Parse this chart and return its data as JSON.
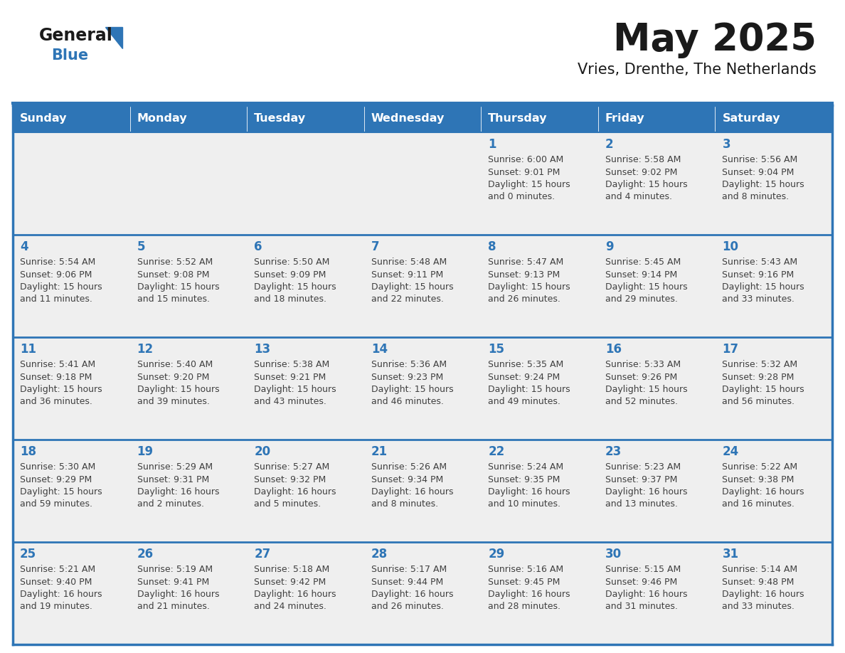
{
  "title": "May 2025",
  "subtitle": "Vries, Drenthe, The Netherlands",
  "days_of_week": [
    "Sunday",
    "Monday",
    "Tuesday",
    "Wednesday",
    "Thursday",
    "Friday",
    "Saturday"
  ],
  "header_bg": "#2E75B6",
  "header_text": "#FFFFFF",
  "cell_bg_normal": "#EFEFEF",
  "cell_bg_white": "#FFFFFF",
  "border_color": "#2E75B6",
  "day_num_color": "#2E75B6",
  "text_color": "#404040",
  "title_color": "#1a1a1a",
  "logo_text_color": "#1a1a1a",
  "logo_blue_color": "#2E75B6",
  "separator_color": "#2E75B6",
  "calendar": [
    [
      {
        "day": null,
        "sunrise": null,
        "sunset": null,
        "daylight": null
      },
      {
        "day": null,
        "sunrise": null,
        "sunset": null,
        "daylight": null
      },
      {
        "day": null,
        "sunrise": null,
        "sunset": null,
        "daylight": null
      },
      {
        "day": null,
        "sunrise": null,
        "sunset": null,
        "daylight": null
      },
      {
        "day": 1,
        "sunrise": "6:00 AM",
        "sunset": "9:01 PM",
        "daylight": "15 hours and 0 minutes."
      },
      {
        "day": 2,
        "sunrise": "5:58 AM",
        "sunset": "9:02 PM",
        "daylight": "15 hours and 4 minutes."
      },
      {
        "day": 3,
        "sunrise": "5:56 AM",
        "sunset": "9:04 PM",
        "daylight": "15 hours and 8 minutes."
      }
    ],
    [
      {
        "day": 4,
        "sunrise": "5:54 AM",
        "sunset": "9:06 PM",
        "daylight": "15 hours and 11 minutes."
      },
      {
        "day": 5,
        "sunrise": "5:52 AM",
        "sunset": "9:08 PM",
        "daylight": "15 hours and 15 minutes."
      },
      {
        "day": 6,
        "sunrise": "5:50 AM",
        "sunset": "9:09 PM",
        "daylight": "15 hours and 18 minutes."
      },
      {
        "day": 7,
        "sunrise": "5:48 AM",
        "sunset": "9:11 PM",
        "daylight": "15 hours and 22 minutes."
      },
      {
        "day": 8,
        "sunrise": "5:47 AM",
        "sunset": "9:13 PM",
        "daylight": "15 hours and 26 minutes."
      },
      {
        "day": 9,
        "sunrise": "5:45 AM",
        "sunset": "9:14 PM",
        "daylight": "15 hours and 29 minutes."
      },
      {
        "day": 10,
        "sunrise": "5:43 AM",
        "sunset": "9:16 PM",
        "daylight": "15 hours and 33 minutes."
      }
    ],
    [
      {
        "day": 11,
        "sunrise": "5:41 AM",
        "sunset": "9:18 PM",
        "daylight": "15 hours and 36 minutes."
      },
      {
        "day": 12,
        "sunrise": "5:40 AM",
        "sunset": "9:20 PM",
        "daylight": "15 hours and 39 minutes."
      },
      {
        "day": 13,
        "sunrise": "5:38 AM",
        "sunset": "9:21 PM",
        "daylight": "15 hours and 43 minutes."
      },
      {
        "day": 14,
        "sunrise": "5:36 AM",
        "sunset": "9:23 PM",
        "daylight": "15 hours and 46 minutes."
      },
      {
        "day": 15,
        "sunrise": "5:35 AM",
        "sunset": "9:24 PM",
        "daylight": "15 hours and 49 minutes."
      },
      {
        "day": 16,
        "sunrise": "5:33 AM",
        "sunset": "9:26 PM",
        "daylight": "15 hours and 52 minutes."
      },
      {
        "day": 17,
        "sunrise": "5:32 AM",
        "sunset": "9:28 PM",
        "daylight": "15 hours and 56 minutes."
      }
    ],
    [
      {
        "day": 18,
        "sunrise": "5:30 AM",
        "sunset": "9:29 PM",
        "daylight": "15 hours and 59 minutes."
      },
      {
        "day": 19,
        "sunrise": "5:29 AM",
        "sunset": "9:31 PM",
        "daylight": "16 hours and 2 minutes."
      },
      {
        "day": 20,
        "sunrise": "5:27 AM",
        "sunset": "9:32 PM",
        "daylight": "16 hours and 5 minutes."
      },
      {
        "day": 21,
        "sunrise": "5:26 AM",
        "sunset": "9:34 PM",
        "daylight": "16 hours and 8 minutes."
      },
      {
        "day": 22,
        "sunrise": "5:24 AM",
        "sunset": "9:35 PM",
        "daylight": "16 hours and 10 minutes."
      },
      {
        "day": 23,
        "sunrise": "5:23 AM",
        "sunset": "9:37 PM",
        "daylight": "16 hours and 13 minutes."
      },
      {
        "day": 24,
        "sunrise": "5:22 AM",
        "sunset": "9:38 PM",
        "daylight": "16 hours and 16 minutes."
      }
    ],
    [
      {
        "day": 25,
        "sunrise": "5:21 AM",
        "sunset": "9:40 PM",
        "daylight": "16 hours and 19 minutes."
      },
      {
        "day": 26,
        "sunrise": "5:19 AM",
        "sunset": "9:41 PM",
        "daylight": "16 hours and 21 minutes."
      },
      {
        "day": 27,
        "sunrise": "5:18 AM",
        "sunset": "9:42 PM",
        "daylight": "16 hours and 24 minutes."
      },
      {
        "day": 28,
        "sunrise": "5:17 AM",
        "sunset": "9:44 PM",
        "daylight": "16 hours and 26 minutes."
      },
      {
        "day": 29,
        "sunrise": "5:16 AM",
        "sunset": "9:45 PM",
        "daylight": "16 hours and 28 minutes."
      },
      {
        "day": 30,
        "sunrise": "5:15 AM",
        "sunset": "9:46 PM",
        "daylight": "16 hours and 31 minutes."
      },
      {
        "day": 31,
        "sunrise": "5:14 AM",
        "sunset": "9:48 PM",
        "daylight": "16 hours and 33 minutes."
      }
    ]
  ]
}
